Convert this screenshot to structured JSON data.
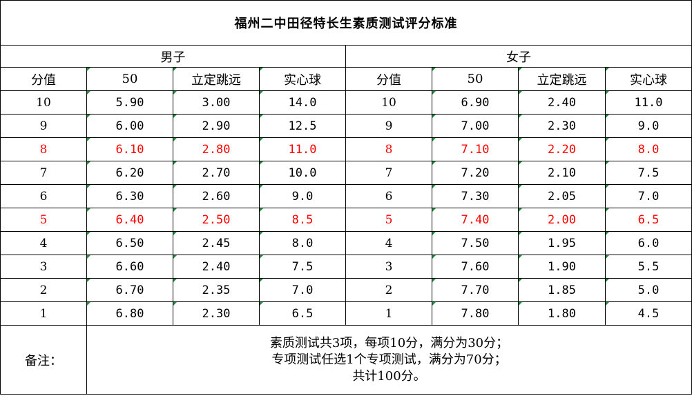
{
  "title": "福州二中田径特长生素质测试评分标准",
  "groups": {
    "male": "男子",
    "female": "女子"
  },
  "headers": [
    "分值",
    "50",
    "立定跳远",
    "实心球"
  ],
  "rows": [
    {
      "score": "10",
      "m50": "5.90",
      "mjump": "3.00",
      "mball": "14.0",
      "f50": "6.90",
      "fjump": "2.40",
      "fball": "11.0",
      "highlight": false
    },
    {
      "score": "9",
      "m50": "6.00",
      "mjump": "2.90",
      "mball": "12.5",
      "f50": "7.00",
      "fjump": "2.30",
      "fball": "9.0",
      "highlight": false
    },
    {
      "score": "8",
      "m50": "6.10",
      "mjump": "2.80",
      "mball": "11.0",
      "f50": "7.10",
      "fjump": "2.20",
      "fball": "8.0",
      "highlight": true
    },
    {
      "score": "7",
      "m50": "6.20",
      "mjump": "2.70",
      "mball": "10.0",
      "f50": "7.20",
      "fjump": "2.10",
      "fball": "7.5",
      "highlight": false
    },
    {
      "score": "6",
      "m50": "6.30",
      "mjump": "2.60",
      "mball": "9.0",
      "f50": "7.30",
      "fjump": "2.05",
      "fball": "7.0",
      "highlight": false
    },
    {
      "score": "5",
      "m50": "6.40",
      "mjump": "2.50",
      "mball": "8.5",
      "f50": "7.40",
      "fjump": "2.00",
      "fball": "6.5",
      "highlight": true
    },
    {
      "score": "4",
      "m50": "6.50",
      "mjump": "2.45",
      "mball": "8.0",
      "f50": "7.50",
      "fjump": "1.95",
      "fball": "6.0",
      "highlight": false
    },
    {
      "score": "3",
      "m50": "6.60",
      "mjump": "2.40",
      "mball": "7.5",
      "f50": "7.60",
      "fjump": "1.90",
      "fball": "5.5",
      "highlight": false
    },
    {
      "score": "2",
      "m50": "6.70",
      "mjump": "2.35",
      "mball": "7.0",
      "f50": "7.70",
      "fjump": "1.85",
      "fball": "5.0",
      "highlight": false
    },
    {
      "score": "1",
      "m50": "6.80",
      "mjump": "2.30",
      "mball": "6.5",
      "f50": "7.80",
      "fjump": "1.80",
      "fball": "4.5",
      "highlight": false
    }
  ],
  "note": {
    "label": "备注：",
    "lines": [
      "素质测试共3项，每项10分，满分为30分；",
      "专项测试任选1个专项测试，满分为70分；",
      "共计100分。"
    ]
  },
  "colors": {
    "highlight": "#ff0000",
    "cell_marker": "#1f8c3a",
    "border": "#000000"
  }
}
